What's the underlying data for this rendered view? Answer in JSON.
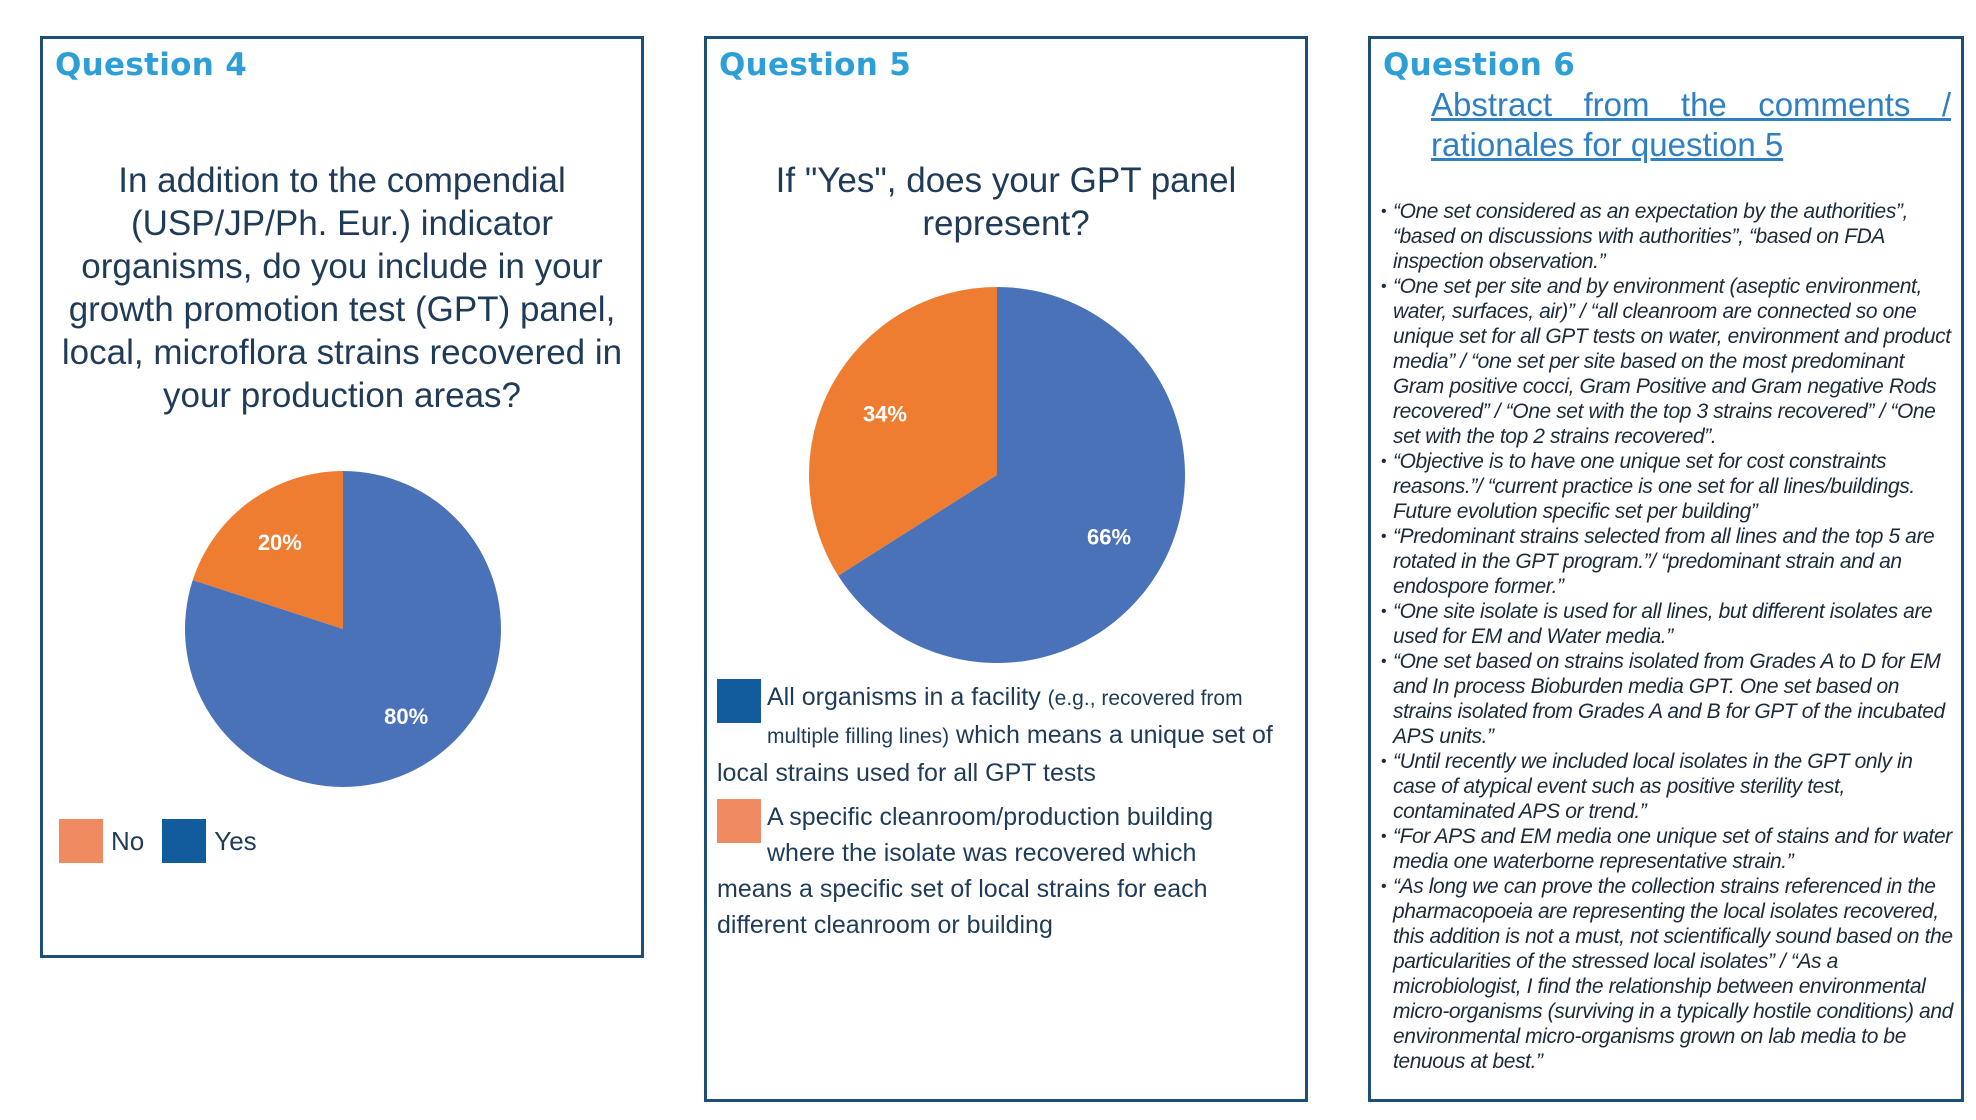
{
  "colors": {
    "blue": "#4a72b8",
    "orange": "#ee7d31",
    "legend_blue": "#125c9e",
    "legend_orange": "#f08a60",
    "title": "#2e9fd6"
  },
  "q4": {
    "title": "Question 4",
    "question": "In addition to the compendial (USP/JP/Ph. Eur.) indicator organisms, do you include in your growth promotion test (GPT) panel, local, microflora strains recovered in your production areas?",
    "legend": [
      {
        "label": "No",
        "color": "#f08a60"
      },
      {
        "label": "Yes",
        "color": "#125c9e"
      }
    ]
  },
  "q5": {
    "title": "Question 5",
    "question": "If \"Yes\", does your GPT panel represent?",
    "legend": [
      {
        "text_main": "All organisms in a facility",
        "text_small": "(e.g., recovered from multiple filling lines)",
        "text_rest": " which means a unique set of local strains used for all GPT tests",
        "color": "#125c9e"
      },
      {
        "text_main": "A specific cleanroom/production building where the isolate was recovered which means a specific set of local  strains for each different cleanroom or building",
        "color": "#f08a60"
      }
    ]
  },
  "q6": {
    "title": "Question 6",
    "subtitle": "Abstract from the comments / rationales for question 5",
    "comments": [
      "“One set considered as an expectation by the authorities”, “based on discussions with authorities”, “based on FDA inspection observation.”",
      "“One set per site and by environment (aseptic environment, water, surfaces, air)” / “all cleanroom are connected so one unique set for all GPT tests on water, environment and product media” / “one set per site based on the most predominant Gram positive cocci, Gram Positive and Gram negative Rods recovered” / “One set with the top 3 strains recovered” / “One set with the top 2 strains recovered”.",
      "“Objective is to have one unique set for cost constraints reasons.”/ “current practice is one set for all lines/buildings. Future evolution specific set per building”",
      "“Predominant strains selected from all lines and the top 5 are rotated in the GPT program.”/ “predominant strain and an endospore former.”",
      "“One site isolate is used for all lines, but different isolates are used for EM and Water media.”",
      "“One set based on strains isolated from Grades A to D for EM and In process Bioburden media GPT.  One set based on strains isolated from Grades A and B for GPT of the incubated APS units.”",
      "“Until recently we included local isolates in the GPT only in case of atypical event such as positive sterility test, contaminated APS or trend.”",
      "“For APS and EM media one unique set of stains and for water media one waterborne representative strain.”",
      "“As long we can prove the collection strains referenced in the pharmacopoeia are representing the local isolates recovered, this addition is not a must, not scientifically sound based on the particularities of the stressed local isolates” / “As a microbiologist, I find the relationship between environmental micro-organisms (surviving in a typically hostile conditions) and environmental micro-organisms grown on lab media to be tenuous at best.”"
    ]
  },
  "chart_data": [
    {
      "type": "pie",
      "title": "In addition to the compendial (USP/JP/Ph. Eur.) indicator organisms, do you include in your growth promotion test (GPT) panel, local, microflora strains recovered in your production areas?",
      "categories": [
        "No",
        "Yes"
      ],
      "values": [
        20,
        80
      ],
      "labels": [
        "20%",
        "80%"
      ],
      "colors": [
        "#ee7d31",
        "#4a72b8"
      ]
    },
    {
      "type": "pie",
      "title": "If \"Yes\", does your GPT panel represent?",
      "categories": [
        "A specific cleanroom/production building",
        "All organisms in a facility"
      ],
      "values": [
        34,
        66
      ],
      "labels": [
        "34%",
        "66%"
      ],
      "colors": [
        "#ee7d31",
        "#4a72b8"
      ]
    }
  ]
}
